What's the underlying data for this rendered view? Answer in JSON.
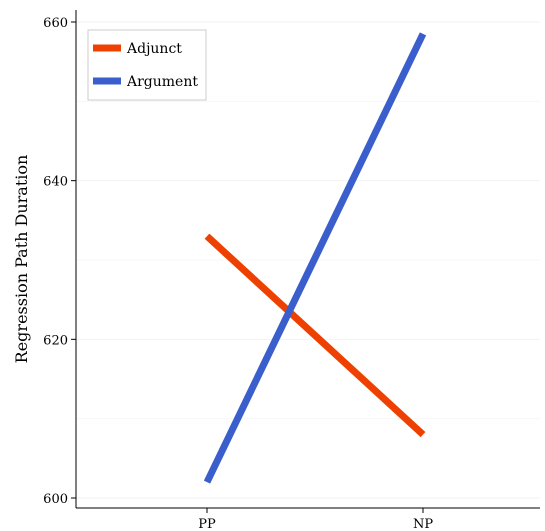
{
  "chart_data": {
    "type": "line",
    "title": "",
    "xlabel": "",
    "ylabel": "Regression Path Duration",
    "categories": [
      "PP",
      "NP"
    ],
    "ylim": [
      600,
      660
    ],
    "yticks": [
      600,
      620,
      640,
      660
    ],
    "grid": true,
    "legend_position": "top-left",
    "series": [
      {
        "name": "Adjunct",
        "color": "#EE4000",
        "values": [
          633,
          608
        ]
      },
      {
        "name": "Argument",
        "color": "#3A5FCD",
        "values": [
          602,
          658.5
        ]
      }
    ]
  }
}
